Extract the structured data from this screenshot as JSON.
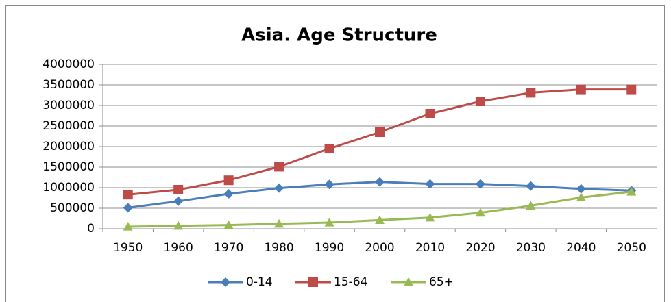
{
  "chart_data": {
    "type": "line",
    "title": "Asia. Age Structure",
    "categories": [
      "1950",
      "1960",
      "1970",
      "1980",
      "1990",
      "2000",
      "2010",
      "2020",
      "2030",
      "2040",
      "2050"
    ],
    "series": [
      {
        "name": "0-14",
        "color": "#4a7ebb",
        "marker": "diamond",
        "values": [
          510000,
          670000,
          850000,
          990000,
          1080000,
          1140000,
          1090000,
          1090000,
          1040000,
          970000,
          930000
        ]
      },
      {
        "name": "15-64",
        "color": "#be4b48",
        "marker": "square",
        "values": [
          830000,
          950000,
          1180000,
          1510000,
          1950000,
          2350000,
          2800000,
          3100000,
          3310000,
          3390000,
          3390000
        ]
      },
      {
        "name": "65+",
        "color": "#98b954",
        "marker": "triangle",
        "values": [
          50000,
          70000,
          90000,
          120000,
          150000,
          210000,
          270000,
          390000,
          560000,
          760000,
          900000
        ]
      }
    ],
    "ylim": [
      0,
      4000000
    ],
    "yticks": [
      0,
      500000,
      1000000,
      1500000,
      2000000,
      2500000,
      3000000,
      3500000,
      4000000
    ],
    "grid": true,
    "legend": "bottom"
  }
}
